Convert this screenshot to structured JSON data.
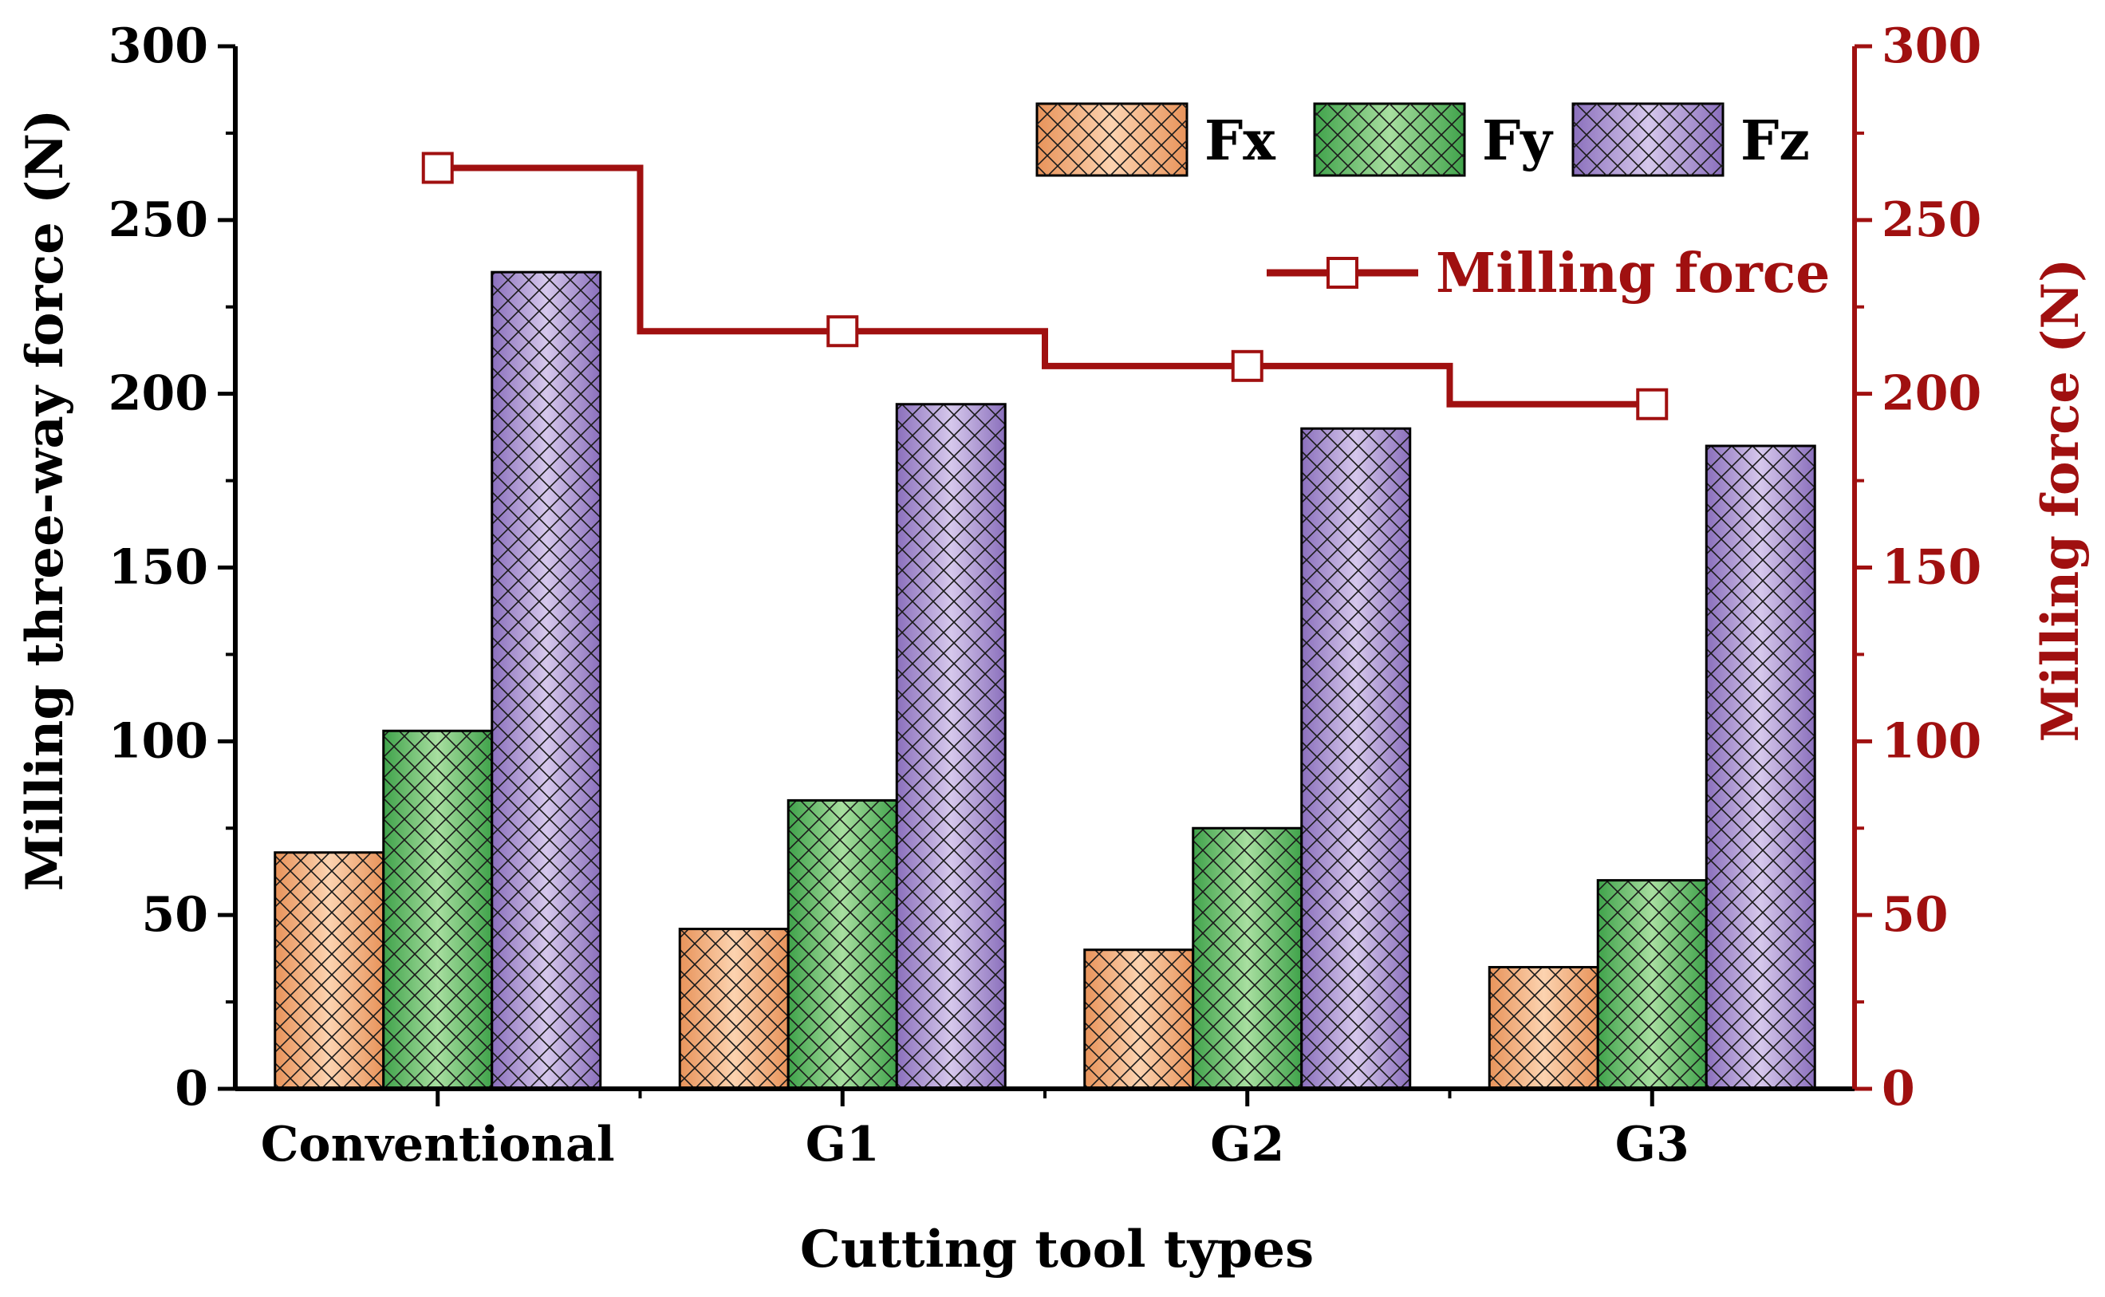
{
  "chart_data": {
    "type": "bar",
    "title": "",
    "xlabel": "Cutting tool types",
    "ylabel": "Milling three-way force (N)",
    "y2label": "Milling force (N)",
    "ylim": [
      0,
      300
    ],
    "y2lim": [
      0,
      300
    ],
    "yticks": [
      "0",
      "50",
      "100",
      "150",
      "200",
      "250",
      "300"
    ],
    "categories": [
      "Conventional",
      "G1",
      "G2",
      "G3"
    ],
    "series": [
      {
        "name": "Fx",
        "values": [
          68,
          46,
          40,
          35
        ],
        "color": "#f4b183"
      },
      {
        "name": "Fy",
        "values": [
          103,
          83,
          75,
          60
        ],
        "color": "#70c070"
      },
      {
        "name": "Fz",
        "values": [
          235,
          197,
          190,
          185
        ],
        "color": "#a991cf"
      }
    ],
    "line_series": {
      "name": "Milling force",
      "values": [
        265,
        218,
        208,
        197
      ],
      "color": "#a01010",
      "style": "step"
    },
    "legend_position": "top-right"
  }
}
